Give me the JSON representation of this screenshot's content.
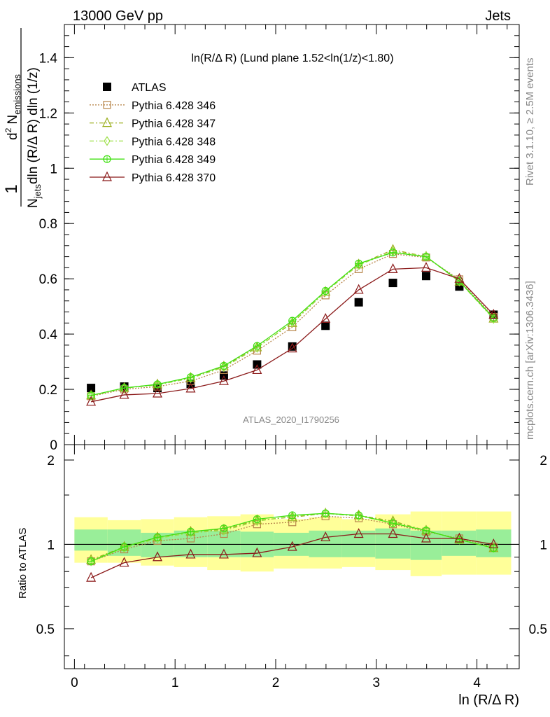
{
  "header": {
    "left": "13000 GeV pp",
    "right": "Jets",
    "side_top": "Rivet 3.1.10, ≥ 2.5M events",
    "side_bottom": "mcplots.cern.ch [arXiv:1306.3436]"
  },
  "chart_data": [
    {
      "type": "scatter",
      "title": "ln(R/Δ R) (Lund plane 1.52<ln(1/z)<1.80)",
      "watermark": "ATLAS_2020_I1790256",
      "ylabel": "1/N_jets d²N_emissions/dln(R/Δ R) dln(1/z)",
      "xlim": [
        -0.1,
        4.42
      ],
      "ylim": [
        0,
        1.52
      ],
      "x_ticks": [
        0,
        1,
        2,
        3,
        4
      ],
      "y_ticks": [
        0,
        0.2,
        0.4,
        0.6,
        0.8,
        1,
        1.2,
        1.4
      ],
      "y_tick_labels": [
        "0",
        "0.2",
        "0.4",
        "0.6",
        "0.8",
        "1",
        "1.2",
        "1.4"
      ],
      "x": [
        0.165,
        0.495,
        0.825,
        1.155,
        1.485,
        1.815,
        2.165,
        2.495,
        2.825,
        3.165,
        3.495,
        3.825,
        4.165
      ],
      "bin_edges": [
        0,
        0.33,
        0.66,
        0.99,
        1.32,
        1.65,
        1.98,
        2.33,
        2.66,
        2.99,
        3.34,
        3.65,
        3.99,
        4.34
      ],
      "series": [
        {
          "name": "ATLAS",
          "color": "#000000",
          "marker": "filled-square",
          "values": [
            0.205,
            0.21,
            0.205,
            0.22,
            0.25,
            0.29,
            0.355,
            0.43,
            0.515,
            0.585,
            0.61,
            0.572,
            0.47
          ]
        },
        {
          "name": "Pythia 6.428 346",
          "color": "#b8864b",
          "marker": "open-square",
          "dash": "dotted",
          "values": [
            0.175,
            0.2,
            0.21,
            0.23,
            0.27,
            0.34,
            0.425,
            0.54,
            0.635,
            0.69,
            0.677,
            0.598,
            0.462
          ]
        },
        {
          "name": "Pythia 6.428 347",
          "color": "#9aae1a",
          "marker": "open-triangle",
          "dash": "dashdot",
          "values": [
            0.178,
            0.205,
            0.218,
            0.242,
            0.283,
            0.352,
            0.44,
            0.553,
            0.652,
            0.705,
            0.68,
            0.59,
            0.456
          ]
        },
        {
          "name": "Pythia 6.428 348",
          "color": "#9bdf46",
          "marker": "open-diamond",
          "dash": "dashdot",
          "values": [
            0.177,
            0.204,
            0.216,
            0.24,
            0.28,
            0.35,
            0.443,
            0.553,
            0.65,
            0.699,
            0.681,
            0.59,
            0.455
          ]
        },
        {
          "name": "Pythia 6.428 349",
          "color": "#3fe010",
          "marker": "open-circle-plus",
          "dash": "solid",
          "values": [
            0.178,
            0.205,
            0.218,
            0.244,
            0.285,
            0.357,
            0.448,
            0.556,
            0.655,
            0.695,
            0.68,
            0.592,
            0.458
          ]
        },
        {
          "name": "Pythia 6.428 370",
          "color": "#8b1a1a",
          "marker": "open-triangle",
          "dash": "solid",
          "values": [
            0.155,
            0.18,
            0.185,
            0.203,
            0.23,
            0.27,
            0.348,
            0.455,
            0.56,
            0.635,
            0.64,
            0.6,
            0.47
          ]
        }
      ]
    },
    {
      "type": "scatter",
      "ylabel": "Ratio to ATLAS",
      "xlabel": "ln (R/Δ R)",
      "ylim": [
        0.36,
        2.27
      ],
      "y_scale": "log",
      "y_ticks": [
        0.5,
        1,
        2
      ],
      "y_tick_labels": [
        "0.5",
        "1",
        "2"
      ],
      "x_ticks": [
        0,
        1,
        2,
        3,
        4
      ],
      "reference_line": 1,
      "bands": {
        "inner_color": "#99ee99",
        "outer_color": "#ffff99",
        "inner": [
          [
            0.95,
            1.13
          ],
          [
            0.91,
            1.13
          ],
          [
            0.9,
            1.1
          ],
          [
            0.9,
            1.12
          ],
          [
            0.9,
            1.12
          ],
          [
            0.9,
            1.11
          ],
          [
            0.91,
            1.1
          ],
          [
            0.9,
            1.12
          ],
          [
            0.9,
            1.12
          ],
          [
            0.89,
            1.14
          ],
          [
            0.88,
            1.12
          ],
          [
            0.91,
            1.12
          ],
          [
            0.9,
            1.13
          ]
        ],
        "outer": [
          [
            0.86,
            1.25
          ],
          [
            0.86,
            1.22
          ],
          [
            0.84,
            1.23
          ],
          [
            0.83,
            1.25
          ],
          [
            0.81,
            1.26
          ],
          [
            0.8,
            1.28
          ],
          [
            0.82,
            1.23
          ],
          [
            0.82,
            1.25
          ],
          [
            0.83,
            1.23
          ],
          [
            0.81,
            1.28
          ],
          [
            0.77,
            1.31
          ],
          [
            0.78,
            1.31
          ],
          [
            0.78,
            1.31
          ]
        ]
      },
      "series": [
        {
          "name": "Pythia 6.428 346",
          "values": [
            0.87,
            0.96,
            1.03,
            1.05,
            1.09,
            1.18,
            1.2,
            1.26,
            1.24,
            1.18,
            1.11,
            1.05,
            0.98
          ]
        },
        {
          "name": "Pythia 6.428 347",
          "values": [
            0.88,
            0.98,
            1.06,
            1.11,
            1.13,
            1.22,
            1.25,
            1.29,
            1.27,
            1.21,
            1.12,
            1.04,
            0.97
          ]
        },
        {
          "name": "Pythia 6.428 348",
          "values": [
            0.87,
            0.97,
            1.05,
            1.1,
            1.12,
            1.21,
            1.26,
            1.29,
            1.26,
            1.2,
            1.12,
            1.04,
            0.97
          ]
        },
        {
          "name": "Pythia 6.428 349",
          "values": [
            0.87,
            0.98,
            1.06,
            1.11,
            1.14,
            1.23,
            1.27,
            1.29,
            1.27,
            1.19,
            1.12,
            1.04,
            0.97
          ]
        },
        {
          "name": "Pythia 6.428 370",
          "values": [
            0.76,
            0.86,
            0.9,
            0.92,
            0.92,
            0.93,
            0.98,
            1.06,
            1.09,
            1.09,
            1.05,
            1.05,
            1.0
          ]
        }
      ]
    }
  ]
}
